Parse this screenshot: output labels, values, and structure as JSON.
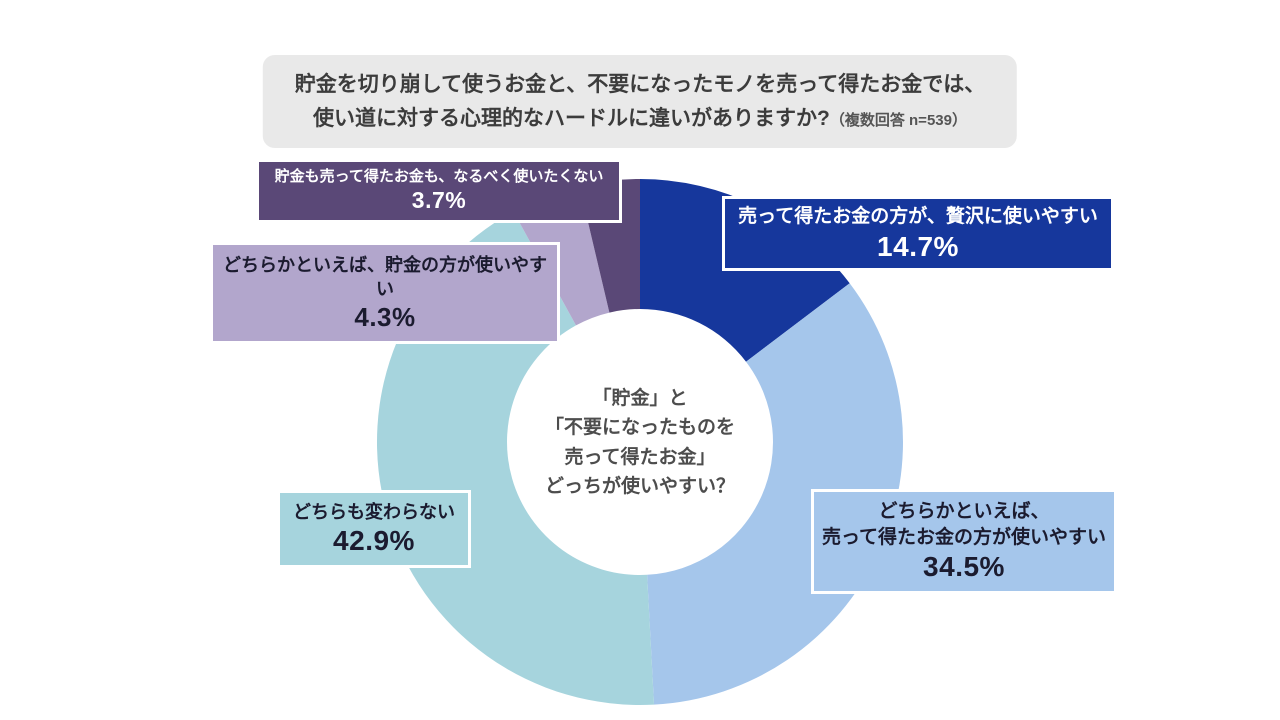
{
  "title": {
    "line1": "貯金を切り崩して使うお金と、不要になったモノを売って得たお金では、",
    "line2": "使い道に対する心理的なハードルに違いがありますか?",
    "note": "（複数回答 n=539）"
  },
  "center_label": {
    "line1": "「貯金」と",
    "line2": "「不要になったものを",
    "line3": "売って得たお金」",
    "line4": "どっちが使いやすい？"
  },
  "chart_data": {
    "type": "pie",
    "donut": true,
    "start_angle_deg": 0,
    "direction": "clockwise",
    "title": "貯金を切り崩して使うお金と、不要になったモノを売って得たお金では、使い道に対する心理的なハードルに違いがありますか?（複数回答 n=539）",
    "sample_note": "複数回答 n=539",
    "segments": [
      {
        "label": "売って得たお金の方が、贅沢に使いやすい",
        "value": 14.7,
        "pct_label": "14.7%",
        "color": "#16379c",
        "text_color": "#ffffff",
        "box_lines": [
          "売って得たお金の方が、贅沢に使いやすい"
        ]
      },
      {
        "label": "どちらかといえば、売って得たお金の方が使いやすい",
        "value": 34.5,
        "pct_label": "34.5%",
        "color": "#a5c6eb",
        "text_color": "#1b1b2f",
        "box_lines": [
          "どちらかといえば、",
          "売って得たお金の方が使いやすい"
        ]
      },
      {
        "label": "どちらも変わらない",
        "value": 42.9,
        "pct_label": "42.9%",
        "color": "#a6d4dd",
        "text_color": "#1b1b2f",
        "box_lines": [
          "どちらも変わらない"
        ]
      },
      {
        "label": "どちらかといえば、貯金の方が使いやすい",
        "value": 4.3,
        "pct_label": "4.3%",
        "color": "#b2a6cc",
        "text_color": "#1b1b2f",
        "box_lines": [
          "どちらかといえば、貯金の方が使いやすい"
        ]
      },
      {
        "label": "貯金も売って得たお金も、なるべく使いたくない",
        "value": 3.7,
        "pct_label": "3.7%",
        "color": "#5a4877",
        "text_color": "#ffffff",
        "box_lines": [
          "貯金も売って得たお金も、なるべく使いたくない"
        ]
      }
    ]
  }
}
